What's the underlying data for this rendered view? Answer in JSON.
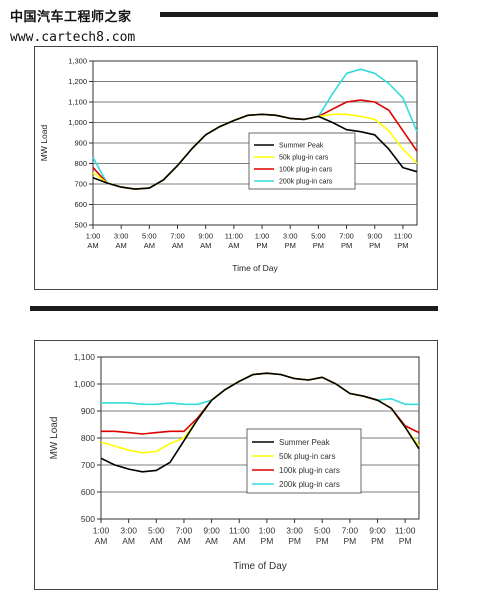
{
  "watermark": {
    "title": "中国汽车工程师之家",
    "url": "www.cartech8.com"
  },
  "chart_data": [
    {
      "type": "line",
      "title": "",
      "xlabel": "Time of Day",
      "ylabel": "MW Load",
      "ylim": [
        500,
        1300
      ],
      "yticks": [
        "500",
        "600",
        "700",
        "800",
        "900",
        "1,000",
        "1,100",
        "1,200",
        "1,300"
      ],
      "x_ticks": [
        [
          "1:00",
          "AM"
        ],
        [
          "3:00",
          "AM"
        ],
        [
          "5:00",
          "AM"
        ],
        [
          "7:00",
          "AM"
        ],
        [
          "9:00",
          "AM"
        ],
        [
          "11:00",
          "AM"
        ],
        [
          "1:00",
          "PM"
        ],
        [
          "3:00",
          "PM"
        ],
        [
          "5:00",
          "PM"
        ],
        [
          "7:00",
          "PM"
        ],
        [
          "9:00",
          "PM"
        ],
        [
          "11:00",
          "PM"
        ]
      ],
      "x": [
        1,
        2,
        3,
        4,
        5,
        6,
        7,
        8,
        9,
        10,
        11,
        12,
        13,
        14,
        15,
        16,
        17,
        18,
        19,
        20,
        21,
        22,
        23,
        24
      ],
      "legend_position": "right-center",
      "series": [
        {
          "name": "Summer Peak",
          "color": "#000000",
          "values": [
            730,
            705,
            685,
            675,
            680,
            720,
            790,
            870,
            940,
            980,
            1010,
            1035,
            1040,
            1035,
            1020,
            1015,
            1030,
            1000,
            965,
            955,
            940,
            870,
            780,
            760
          ]
        },
        {
          "name": "50k plug-in cars",
          "color": "#ffff00",
          "values": [
            755,
            705,
            685,
            675,
            680,
            720,
            790,
            870,
            940,
            980,
            1010,
            1035,
            1040,
            1035,
            1020,
            1015,
            1030,
            1040,
            1040,
            1030,
            1015,
            960,
            870,
            800
          ]
        },
        {
          "name": "100k plug-in cars",
          "color": "#dd0000",
          "values": [
            780,
            705,
            685,
            675,
            680,
            720,
            790,
            870,
            940,
            980,
            1010,
            1035,
            1040,
            1035,
            1020,
            1015,
            1030,
            1065,
            1100,
            1110,
            1100,
            1060,
            960,
            860
          ]
        },
        {
          "name": "200k plug-in cars",
          "color": "#33dddd",
          "values": [
            830,
            705,
            685,
            675,
            680,
            720,
            790,
            870,
            940,
            980,
            1010,
            1035,
            1040,
            1035,
            1020,
            1015,
            1030,
            1140,
            1240,
            1260,
            1240,
            1190,
            1120,
            955
          ]
        }
      ]
    },
    {
      "type": "line",
      "title": "",
      "xlabel": "Time of Day",
      "ylabel": "MW Load",
      "ylim": [
        500,
        1100
      ],
      "yticks": [
        "500",
        "600",
        "700",
        "800",
        "900",
        "1,000",
        "1,100"
      ],
      "x_ticks": [
        [
          "1:00",
          "AM"
        ],
        [
          "3:00",
          "AM"
        ],
        [
          "5:00",
          "AM"
        ],
        [
          "7:00",
          "AM"
        ],
        [
          "9:00",
          "AM"
        ],
        [
          "11:00",
          "AM"
        ],
        [
          "1:00",
          "PM"
        ],
        [
          "3:00",
          "PM"
        ],
        [
          "5:00",
          "PM"
        ],
        [
          "7:00",
          "PM"
        ],
        [
          "9:00",
          "PM"
        ],
        [
          "11:00",
          "PM"
        ]
      ],
      "x": [
        1,
        2,
        3,
        4,
        5,
        6,
        7,
        8,
        9,
        10,
        11,
        12,
        13,
        14,
        15,
        16,
        17,
        18,
        19,
        20,
        21,
        22,
        23,
        24
      ],
      "legend_position": "right-center",
      "series": [
        {
          "name": "Summer Peak",
          "color": "#000000",
          "values": [
            725,
            700,
            685,
            675,
            680,
            710,
            790,
            870,
            940,
            980,
            1010,
            1035,
            1040,
            1035,
            1020,
            1015,
            1025,
            1000,
            965,
            955,
            940,
            910,
            840,
            760
          ]
        },
        {
          "name": "50k plug-in cars",
          "color": "#ffff00",
          "values": [
            785,
            770,
            755,
            745,
            750,
            780,
            800,
            870,
            940,
            980,
            1010,
            1035,
            1040,
            1035,
            1020,
            1015,
            1025,
            1000,
            965,
            955,
            940,
            910,
            840,
            770
          ]
        },
        {
          "name": "100k plug-in cars",
          "color": "#dd0000",
          "values": [
            825,
            825,
            820,
            815,
            820,
            825,
            825,
            875,
            940,
            980,
            1010,
            1035,
            1040,
            1035,
            1020,
            1015,
            1025,
            1000,
            965,
            955,
            940,
            910,
            845,
            820
          ]
        },
        {
          "name": "200k plug-in cars",
          "color": "#33dddd",
          "values": [
            930,
            930,
            930,
            925,
            925,
            930,
            925,
            925,
            940,
            980,
            1010,
            1035,
            1040,
            1035,
            1020,
            1015,
            1025,
            1000,
            965,
            955,
            940,
            945,
            925,
            925
          ]
        }
      ]
    }
  ]
}
